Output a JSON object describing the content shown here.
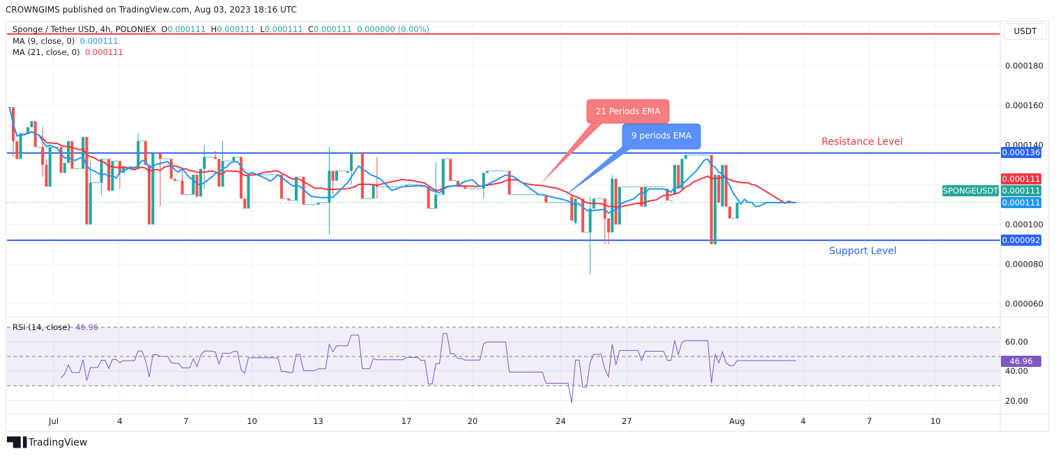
{
  "publish_line": "CROWNGIMS published on TradingView.com, Aug 03, 2023 18:16 UTC",
  "legend": {
    "symbol": "Sponge / Tether USD, 4h, POLONIEX",
    "o_label": "O",
    "o": "0.000111",
    "h_label": "H",
    "h": "0.000111",
    "l_label": "L",
    "l": "0.000111",
    "c_label": "C",
    "c": "0.000111",
    "change": "0.000000 (0.00%)",
    "ma9_label": "MA (9, close, 0)",
    "ma9_value": "0.000111",
    "ma21_label": "MA (21, close, 0)",
    "ma21_value": "0.000111"
  },
  "currency_button": "USDT",
  "price_tags": {
    "resistance": "0.000136",
    "ma21": "0.000111",
    "symbol": "SPONGEUSDT",
    "last": "0.000111",
    "ma9": "0.000111",
    "support": "0.000092"
  },
  "annotations": {
    "ema21_callout": "21 Periods EMA",
    "ema9_callout": "9 periods EMA",
    "resistance_label": "Resistance Level",
    "support_label": "Support Level"
  },
  "rsi": {
    "label": "RSI (14, close)",
    "value": "46.96",
    "ticks": [
      "60.00",
      "40.00",
      "20.00"
    ]
  },
  "footer_logo": "TradingView",
  "colors": {
    "up": "#26a69a",
    "down": "#ef5350",
    "ma9": "#2196f3",
    "ma21": "#f23645",
    "levels": "#2962ff",
    "rsi": "#7e57c2",
    "top_line": "#f23645"
  },
  "chart_data": {
    "type": "candlestick",
    "interval": "4h",
    "price_axis_ticks": [
      "0.000180",
      "0.000160",
      "0.000140",
      "0.000100",
      "0.000080",
      "0.000060"
    ],
    "ylim": [
      5.35e-05,
      0.0002026
    ],
    "x_ticks": [
      {
        "label": "Jul",
        "date": "2023-07-01"
      },
      {
        "label": "4",
        "date": "2023-07-04"
      },
      {
        "label": "7",
        "date": "2023-07-07"
      },
      {
        "label": "10",
        "date": "2023-07-10"
      },
      {
        "label": "13",
        "date": "2023-07-13"
      },
      {
        "label": "17",
        "date": "2023-07-17"
      },
      {
        "label": "20",
        "date": "2023-07-20"
      },
      {
        "label": "24",
        "date": "2023-07-24"
      },
      {
        "label": "27",
        "date": "2023-07-27"
      },
      {
        "label": "Aug",
        "date": "2023-08-01"
      },
      {
        "label": "4",
        "date": "2023-08-04"
      },
      {
        "label": "7",
        "date": "2023-08-07"
      },
      {
        "label": "10",
        "date": "2023-08-10"
      }
    ],
    "xlim": [
      "2023-06-28 21:00",
      "2023-08-13 00:00"
    ],
    "grid": true,
    "horizontal_levels": {
      "resistance": 0.000136,
      "support": 9.2e-05,
      "top_line": 0.000196
    },
    "last_price": 0.000111,
    "rsi_range": [
      10.5,
      77.1
    ],
    "rsi_bands": [
      30,
      50,
      70
    ],
    "candles_note_fields": [
      "time",
      "open",
      "high",
      "low",
      "close"
    ],
    "candles": [
      [
        "2023-06-29 00:00",
        0.000159,
        0.000159,
        0.000159,
        0.000159
      ],
      [
        "2023-06-29 04:00",
        0.000159,
        0.000159,
        0.000134,
        0.000142
      ],
      [
        "2023-06-29 08:00",
        0.000142,
        0.000142,
        0.000133,
        0.000133
      ],
      [
        "2023-06-29 12:00",
        0.000133,
        0.000146,
        0.000133,
        0.000146
      ],
      [
        "2023-06-29 20:00",
        0.000146,
        0.000149,
        0.000146,
        0.000149
      ],
      [
        "2023-06-30 00:00",
        0.000149,
        0.000152,
        0.000149,
        0.000152
      ],
      [
        "2023-06-30 04:00",
        0.000152,
        0.000152,
        0.000139,
        0.000139
      ],
      [
        "2023-06-30 12:00",
        0.000139,
        0.000149,
        0.000124,
        0.00013
      ],
      [
        "2023-06-30 16:00",
        0.00013,
        0.000133,
        0.000119,
        0.000119
      ],
      [
        "2023-06-30 20:00",
        0.000119,
        0.000139,
        0.000119,
        0.000139
      ],
      [
        "2023-07-01 08:00",
        0.000139,
        0.000139,
        0.000126,
        0.000126
      ],
      [
        "2023-07-01 12:00",
        0.000126,
        0.000131,
        0.000126,
        0.000131
      ],
      [
        "2023-07-01 16:00",
        0.000131,
        0.000142,
        0.000131,
        0.000142
      ],
      [
        "2023-07-01 20:00",
        0.000142,
        0.000142,
        0.000128,
        0.000128
      ],
      [
        "2023-07-02 08:00",
        0.000128,
        0.000144,
        0.000128,
        0.000144
      ],
      [
        "2023-07-02 12:00",
        0.000144,
        0.000144,
        0.0001,
        0.0001
      ],
      [
        "2023-07-02 16:00",
        0.0001,
        0.000132,
        0.0001,
        0.000121
      ],
      [
        "2023-07-03 04:00",
        0.000121,
        0.000133,
        0.000115,
        0.000133
      ],
      [
        "2023-07-03 12:00",
        0.000133,
        0.000133,
        0.000117,
        0.000117
      ],
      [
        "2023-07-03 16:00",
        0.000117,
        0.000132,
        0.000117,
        0.000132
      ],
      [
        "2023-07-04 00:00",
        0.000132,
        0.000132,
        0.000118,
        0.000126
      ],
      [
        "2023-07-04 04:00",
        0.000126,
        0.000129,
        0.000126,
        0.000129
      ],
      [
        "2023-07-04 20:00",
        0.000128,
        0.000146,
        0.000128,
        0.000142
      ],
      [
        "2023-07-05 04:00",
        0.000142,
        0.000142,
        0.00013,
        0.00013
      ],
      [
        "2023-07-05 08:00",
        0.00013,
        0.00013,
        0.0001,
        0.0001
      ],
      [
        "2023-07-05 12:00",
        0.0001,
        0.000136,
        0.0001,
        0.000136
      ],
      [
        "2023-07-05 20:00",
        0.000136,
        0.000136,
        0.000109,
        0.000133
      ],
      [
        "2023-07-06 08:00",
        0.000133,
        0.000133,
        0.000123,
        0.000123
      ],
      [
        "2023-07-06 12:00",
        0.000123,
        0.000123,
        0.000122,
        0.000122
      ],
      [
        "2023-07-06 20:00",
        0.000122,
        0.000129,
        0.000115,
        0.000115
      ],
      [
        "2023-07-07 08:00",
        0.000115,
        0.000125,
        0.000115,
        0.000125
      ],
      [
        "2023-07-07 12:00",
        0.000125,
        0.000125,
        0.000114,
        0.000114
      ],
      [
        "2023-07-07 16:00",
        0.000114,
        0.000128,
        0.000114,
        0.000128
      ],
      [
        "2023-07-07 20:00",
        0.000128,
        0.00014,
        0.000118,
        0.000134
      ],
      [
        "2023-07-08 08:00",
        0.000134,
        0.000137,
        0.000133,
        0.000133
      ],
      [
        "2023-07-08 12:00",
        0.000133,
        0.000133,
        0.000119,
        0.000119
      ],
      [
        "2023-07-08 16:00",
        0.000119,
        0.000142,
        0.000119,
        0.000132
      ],
      [
        "2023-07-09 04:00",
        0.000132,
        0.000134,
        0.000132,
        0.000134
      ],
      [
        "2023-07-09 12:00",
        0.000134,
        0.000134,
        0.000113,
        0.000113
      ],
      [
        "2023-07-09 16:00",
        0.000113,
        0.000113,
        0.000108,
        0.000108
      ],
      [
        "2023-07-09 20:00",
        0.000108,
        0.000125,
        0.000108,
        0.000125
      ],
      [
        "2023-07-11 08:00",
        0.000125,
        0.000125,
        0.000113,
        0.000113
      ],
      [
        "2023-07-11 16:00",
        0.000113,
        0.000113,
        0.000112,
        0.000112
      ],
      [
        "2023-07-12 00:00",
        0.000112,
        0.000124,
        0.000112,
        0.000124
      ],
      [
        "2023-07-12 08:00",
        0.000124,
        0.000124,
        0.00011,
        0.00011
      ],
      [
        "2023-07-13 00:00",
        0.00011,
        0.000111,
        0.00011,
        0.000111
      ],
      [
        "2023-07-13 12:00",
        0.000111,
        0.000139,
        9.5e-05,
        0.000127
      ],
      [
        "2023-07-13 16:00",
        0.000127,
        0.000127,
        0.000115,
        0.000122
      ],
      [
        "2023-07-13 20:00",
        0.000122,
        0.000127,
        0.000122,
        0.000127
      ],
      [
        "2023-07-14 08:00",
        0.000126,
        0.000127,
        0.000126,
        0.000127
      ],
      [
        "2023-07-14 12:00",
        0.000127,
        0.000136,
        0.00012,
        0.000136
      ],
      [
        "2023-07-15 00:00",
        0.000136,
        0.000136,
        0.000113,
        0.000113
      ],
      [
        "2023-07-15 12:00",
        0.000113,
        0.00012,
        0.000113,
        0.00012
      ],
      [
        "2023-07-15 16:00",
        0.00012,
        0.000134,
        0.000113,
        0.000119
      ],
      [
        "2023-07-17 00:00",
        0.000119,
        0.00012,
        0.000119,
        0.00012
      ],
      [
        "2023-07-17 16:00",
        0.00012,
        0.00012,
        0.000119,
        0.000119
      ],
      [
        "2023-07-18 00:00",
        0.000119,
        0.000119,
        0.000108,
        0.000108
      ],
      [
        "2023-07-18 08:00",
        0.000108,
        0.000131,
        0.000108,
        0.000115
      ],
      [
        "2023-07-18 16:00",
        0.000115,
        0.000133,
        0.000115,
        0.000133
      ],
      [
        "2023-07-19 00:00",
        0.000133,
        0.000133,
        0.000122,
        0.000122
      ],
      [
        "2023-07-19 08:00",
        0.000122,
        0.000122,
        0.000119,
        0.000119
      ],
      [
        "2023-07-19 16:00",
        0.000119,
        0.000119,
        0.000118,
        0.000118
      ],
      [
        "2023-07-20 12:00",
        0.000118,
        0.000126,
        0.000113,
        0.000126
      ],
      [
        "2023-07-20 16:00",
        0.000126,
        0.000127,
        0.000126,
        0.000127
      ],
      [
        "2023-07-21 16:00",
        0.000127,
        0.000127,
        0.000115,
        0.000115
      ],
      [
        "2023-07-23 08:00",
        0.000115,
        0.000115,
        0.000111,
        0.000111
      ],
      [
        "2023-07-24 12:00",
        0.000114,
        0.000114,
        0.000102,
        0.000102
      ],
      [
        "2023-07-24 16:00",
        0.000101,
        0.000113,
        0.0001,
        0.000113
      ],
      [
        "2023-07-25 00:00",
        0.000113,
        0.000113,
        9.6e-05,
        9.6e-05
      ],
      [
        "2023-07-25 08:00",
        9.6e-05,
        0.000114,
        7.5e-05,
        0.000108
      ],
      [
        "2023-07-25 12:00",
        0.000108,
        0.000113,
        0.000108,
        0.000113
      ],
      [
        "2023-07-26 00:00",
        0.000113,
        0.000113,
        9e-05,
        0.000103
      ],
      [
        "2023-07-26 04:00",
        0.000103,
        0.000103,
        9e-05,
        9.6e-05
      ],
      [
        "2023-07-26 08:00",
        9.6e-05,
        0.000125,
        9.6e-05,
        0.000123
      ],
      [
        "2023-07-26 12:00",
        0.000123,
        0.000123,
        0.0001,
        0.0001
      ],
      [
        "2023-07-26 16:00",
        0.0001,
        0.000119,
        0.0001,
        0.000119
      ],
      [
        "2023-07-27 16:00",
        0.000119,
        0.000119,
        0.000109,
        0.000109
      ],
      [
        "2023-07-27 20:00",
        0.000109,
        0.000119,
        0.000109,
        0.000119
      ],
      [
        "2023-07-28 20:00",
        0.000118,
        0.000118,
        0.000112,
        0.000112
      ],
      [
        "2023-07-29 04:00",
        0.000115,
        0.00013,
        0.000115,
        0.00013
      ],
      [
        "2023-07-29 08:00",
        0.00013,
        0.00013,
        0.000118,
        0.000118
      ],
      [
        "2023-07-29 12:00",
        0.000118,
        0.000133,
        0.000118,
        0.000133
      ],
      [
        "2023-07-29 16:00",
        0.000133,
        0.000135,
        0.000133,
        0.000135
      ],
      [
        "2023-07-30 20:00",
        0.000135,
        0.000135,
        9e-05,
        9e-05
      ],
      [
        "2023-07-31 00:00",
        9e-05,
        0.000125,
        9e-05,
        0.000125
      ],
      [
        "2023-07-31 04:00",
        0.000125,
        0.000125,
        0.000111,
        0.000111
      ],
      [
        "2023-07-31 08:00",
        0.000109,
        0.00013,
        0.000109,
        0.00013
      ],
      [
        "2023-07-31 12:00",
        0.00013,
        0.00013,
        0.000109,
        0.000109
      ],
      [
        "2023-07-31 16:00",
        0.000109,
        0.000109,
        0.000103,
        0.000103
      ],
      [
        "2023-08-01 00:00",
        0.000103,
        0.000111,
        0.000103,
        0.000111
      ],
      [
        "2023-08-03 16:00",
        0.000111,
        0.000111,
        0.000111,
        0.000111
      ]
    ]
  }
}
